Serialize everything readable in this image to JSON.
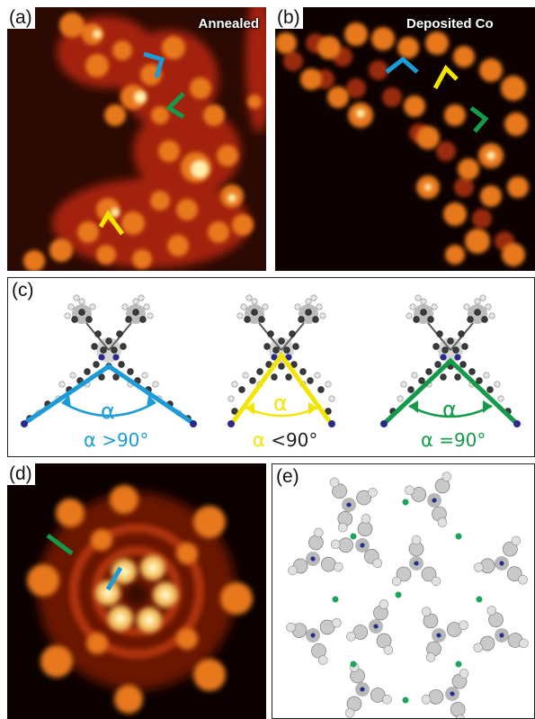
{
  "panels": {
    "a": {
      "label": "(a)",
      "title": "Annealed"
    },
    "b": {
      "label": "(b)",
      "title": "Deposited Co"
    },
    "c": {
      "label": "(c)",
      "molecules": [
        {
          "symbol": "α",
          "relation": ">90°",
          "color": "#1b9bd7"
        },
        {
          "symbol": "α",
          "relation": "<90°",
          "color": "#f2e500"
        },
        {
          "symbol": "α",
          "relation": "=90°",
          "color": "#159a4a"
        }
      ]
    },
    "d": {
      "label": "(d)"
    },
    "e": {
      "label": "(e)"
    }
  },
  "colors": {
    "blue": "#1b9bd7",
    "yellow": "#f2e500",
    "green": "#159a4a",
    "navy": "#2a2a8c",
    "node": "#1aa65a"
  }
}
